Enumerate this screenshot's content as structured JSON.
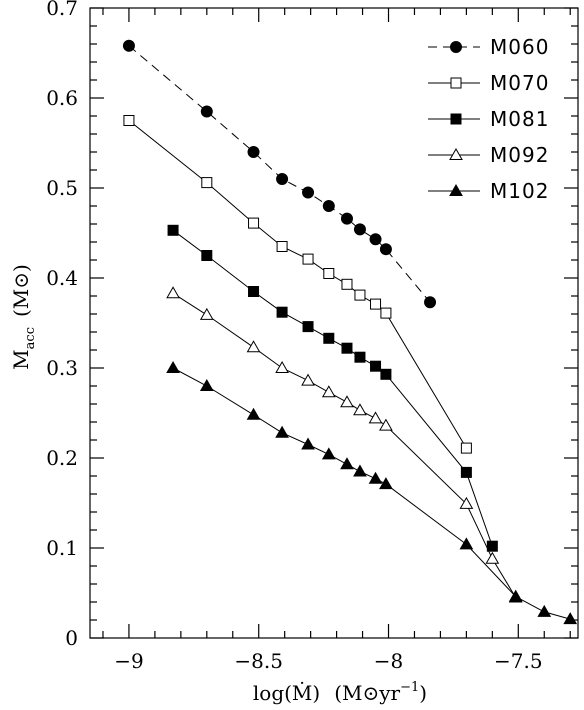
{
  "chart_data": {
    "type": "line",
    "xlabel": "log(Ṁ)  (M⊙yr⁻¹)",
    "ylabel": "M_acc  (M⊙)",
    "ylabel_main": "M",
    "ylabel_sub": "acc",
    "ylabel_unit": "(M⊙)",
    "xlabel_main": "log(Ṁ)",
    "xlabel_unit_main": "(M⊙yr",
    "xlabel_unit_sup": "−1",
    "xlabel_unit_close": ")",
    "xlim": [
      -9.15,
      -7.27
    ],
    "ylim": [
      0,
      0.7
    ],
    "x_ticks": [
      -9,
      -8.5,
      -8,
      -7.5
    ],
    "x_tick_labels": [
      "−9",
      "−8.5",
      "−8",
      "−7.5"
    ],
    "y_ticks": [
      0,
      0.1,
      0.2,
      0.3,
      0.4,
      0.5,
      0.6,
      0.7
    ],
    "y_tick_labels": [
      "0",
      "0.1",
      "0.2",
      "0.3",
      "0.4",
      "0.5",
      "0.6",
      "0.7"
    ],
    "grid": false,
    "legend_position": "top-right",
    "series": [
      {
        "name": "M060",
        "marker": "filled-circle",
        "line": "dashed",
        "x": [
          -9.0,
          -8.7,
          -8.52,
          -8.41,
          -8.31,
          -8.23,
          -8.16,
          -8.11,
          -8.05,
          -8.01,
          -7.84
        ],
        "y": [
          0.658,
          0.585,
          0.54,
          0.51,
          0.495,
          0.48,
          0.466,
          0.454,
          0.443,
          0.432,
          0.373
        ]
      },
      {
        "name": "M070",
        "marker": "open-square",
        "line": "solid",
        "x": [
          -9.0,
          -8.7,
          -8.52,
          -8.41,
          -8.31,
          -8.23,
          -8.16,
          -8.11,
          -8.05,
          -8.01,
          -7.7
        ],
        "y": [
          0.575,
          0.506,
          0.461,
          0.435,
          0.421,
          0.405,
          0.393,
          0.381,
          0.371,
          0.361,
          0.211
        ]
      },
      {
        "name": "M081",
        "marker": "filled-square",
        "line": "solid",
        "x": [
          -8.83,
          -8.7,
          -8.52,
          -8.41,
          -8.31,
          -8.23,
          -8.16,
          -8.11,
          -8.05,
          -8.01,
          -7.7,
          -7.6
        ],
        "y": [
          0.453,
          0.425,
          0.385,
          0.362,
          0.346,
          0.333,
          0.322,
          0.312,
          0.302,
          0.293,
          0.184,
          0.102
        ]
      },
      {
        "name": "M092",
        "marker": "open-triangle",
        "line": "solid",
        "x": [
          -8.83,
          -8.7,
          -8.52,
          -8.41,
          -8.31,
          -8.23,
          -8.16,
          -8.11,
          -8.05,
          -8.01,
          -7.7,
          -7.6,
          -7.51
        ],
        "y": [
          0.383,
          0.359,
          0.323,
          0.3,
          0.286,
          0.273,
          0.262,
          0.253,
          0.244,
          0.236,
          0.149,
          0.088,
          0.045
        ]
      },
      {
        "name": "M102",
        "marker": "filled-triangle",
        "line": "solid",
        "x": [
          -8.83,
          -8.7,
          -8.52,
          -8.41,
          -8.31,
          -8.23,
          -8.16,
          -8.11,
          -8.05,
          -8.01,
          -7.7,
          -7.51,
          -7.4,
          -7.3
        ],
        "y": [
          0.3,
          0.28,
          0.248,
          0.228,
          0.215,
          0.204,
          0.193,
          0.185,
          0.177,
          0.171,
          0.104,
          0.046,
          0.029,
          0.021
        ]
      }
    ]
  }
}
